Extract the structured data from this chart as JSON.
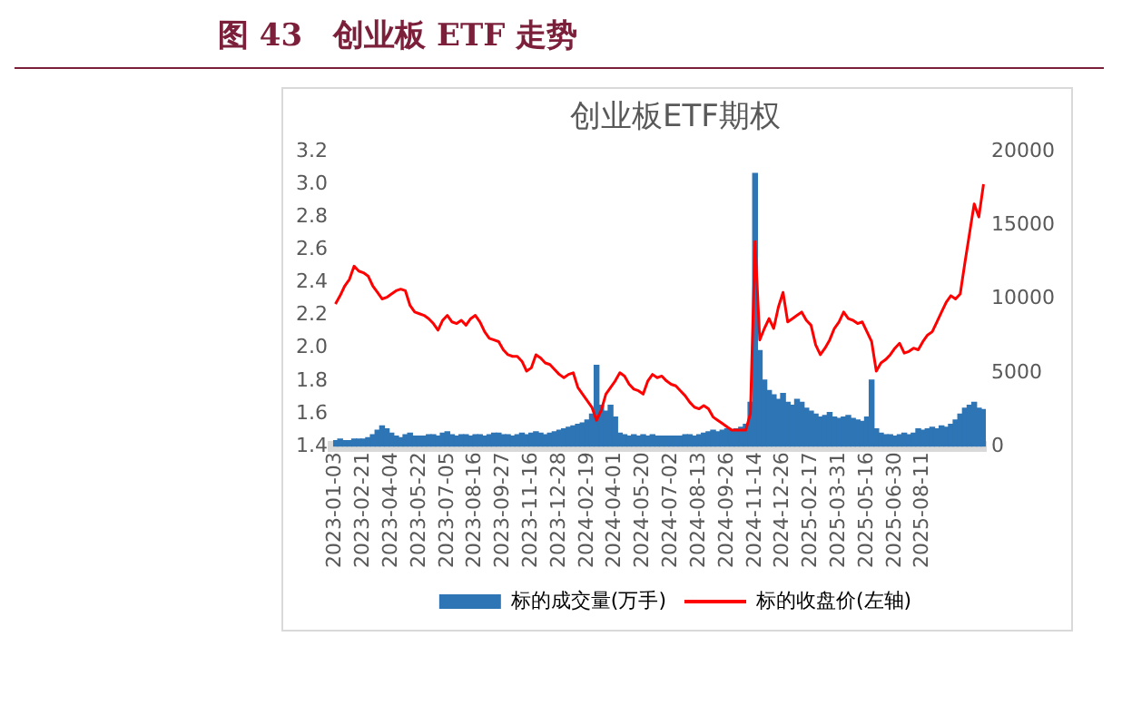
{
  "chart_data": {
    "type": "bar",
    "title": "图 43　创业板 ETF 走势",
    "subtitle": "创业板ETF期权",
    "categories": [
      "2023-01-03",
      null,
      null,
      null,
      null,
      null,
      "2023-02-21",
      null,
      null,
      null,
      null,
      null,
      "2023-04-04",
      null,
      null,
      null,
      null,
      null,
      "2023-05-22",
      null,
      null,
      null,
      null,
      null,
      "2023-07-05",
      null,
      null,
      null,
      null,
      null,
      "2023-08-16",
      null,
      null,
      null,
      null,
      null,
      "2023-09-27",
      null,
      null,
      null,
      null,
      null,
      "2023-11-16",
      null,
      null,
      null,
      null,
      null,
      "2023-12-28",
      null,
      null,
      null,
      null,
      null,
      "2024-02-19",
      null,
      null,
      null,
      null,
      null,
      "2024-04-01",
      null,
      null,
      null,
      null,
      null,
      "2024-05-20",
      null,
      null,
      null,
      null,
      null,
      "2024-07-02",
      null,
      null,
      null,
      null,
      null,
      "2024-08-13",
      null,
      null,
      null,
      null,
      null,
      "2024-09-26",
      null,
      null,
      null,
      null,
      null,
      "2024-11-14",
      null,
      null,
      null,
      null,
      null,
      "2024-12-26",
      null,
      null,
      null,
      null,
      null,
      "2025-02-17",
      null,
      null,
      null,
      null,
      null,
      "2025-03-31",
      null,
      null,
      null,
      null,
      null,
      "2025-05-16",
      null,
      null,
      null,
      null,
      null,
      "2025-06-30",
      null,
      null,
      null,
      null,
      null,
      "2025-08-11",
      null,
      null,
      null,
      null,
      null,
      null,
      null,
      null,
      null,
      null,
      null,
      null,
      null
    ],
    "series": [
      {
        "name": "标的成交量(万手)",
        "axis": "y2",
        "color": "#2e75b6",
        "values": [
          400,
          500,
          400,
          400,
          500,
          500,
          500,
          600,
          800,
          1100,
          1400,
          1200,
          900,
          700,
          600,
          800,
          900,
          700,
          700,
          700,
          800,
          800,
          700,
          900,
          1000,
          800,
          700,
          800,
          800,
          700,
          800,
          800,
          700,
          800,
          900,
          900,
          800,
          800,
          700,
          800,
          900,
          800,
          900,
          1000,
          900,
          800,
          900,
          1000,
          1100,
          1200,
          1300,
          1400,
          1500,
          1600,
          1800,
          2200,
          5500,
          2800,
          2400,
          2800,
          2000,
          900,
          800,
          700,
          800,
          700,
          800,
          700,
          800,
          700,
          700,
          700,
          700,
          700,
          700,
          800,
          800,
          700,
          800,
          900,
          1000,
          1100,
          1000,
          1100,
          1200,
          1100,
          1200,
          1300,
          1500,
          3000,
          18500,
          6500,
          4500,
          3800,
          3500,
          3200,
          3600,
          3000,
          2800,
          3200,
          3000,
          2600,
          2400,
          2200,
          2000,
          2100,
          2300,
          2000,
          1900,
          2000,
          2100,
          1900,
          1800,
          1700,
          2000,
          4500,
          1200,
          900,
          800,
          800,
          700,
          800,
          900,
          800,
          900,
          1200,
          1100,
          1200,
          1300,
          1200,
          1400,
          1300,
          1500,
          1800,
          2200,
          2600,
          2800,
          3000,
          2600,
          2500
        ]
      },
      {
        "name": "标的收盘价(左轴)",
        "type": "line",
        "color": "#ff0000",
        "values": [
          2.27,
          2.32,
          2.38,
          2.42,
          2.5,
          2.47,
          2.46,
          2.44,
          2.38,
          2.34,
          2.3,
          2.31,
          2.33,
          2.35,
          2.36,
          2.35,
          2.26,
          2.22,
          2.21,
          2.2,
          2.18,
          2.15,
          2.11,
          2.17,
          2.2,
          2.16,
          2.15,
          2.17,
          2.14,
          2.18,
          2.2,
          2.16,
          2.1,
          2.06,
          2.05,
          2.04,
          1.99,
          1.96,
          1.95,
          1.95,
          1.92,
          1.86,
          1.88,
          1.96,
          1.94,
          1.91,
          1.9,
          1.87,
          1.84,
          1.82,
          1.84,
          1.85,
          1.76,
          1.72,
          1.68,
          1.64,
          1.56,
          1.62,
          1.72,
          1.76,
          1.8,
          1.85,
          1.83,
          1.78,
          1.75,
          1.74,
          1.72,
          1.8,
          1.84,
          1.82,
          1.83,
          1.8,
          1.78,
          1.77,
          1.74,
          1.71,
          1.67,
          1.64,
          1.63,
          1.65,
          1.63,
          1.58,
          1.56,
          1.54,
          1.52,
          1.5,
          1.5,
          1.5,
          1.5,
          1.6,
          2.65,
          2.05,
          2.12,
          2.18,
          2.12,
          2.25,
          2.34,
          2.16,
          2.18,
          2.2,
          2.22,
          2.17,
          2.14,
          2.02,
          1.96,
          2.0,
          2.05,
          2.12,
          2.16,
          2.22,
          2.18,
          2.17,
          2.15,
          2.16,
          2.1,
          2.04,
          1.86,
          1.91,
          1.93,
          1.96,
          2.0,
          2.03,
          1.97,
          1.98,
          2.0,
          1.99,
          2.04,
          2.08,
          2.1,
          2.16,
          2.22,
          2.28,
          2.32,
          2.3,
          2.33,
          2.52,
          2.7,
          2.88,
          2.8,
          3.0
        ]
      }
    ],
    "ylim": [
      1.4,
      3.2
    ],
    "yticks": [
      1.4,
      1.6,
      1.8,
      {
        "value": 2,
        "label": "2.0"
      },
      2.2,
      2.4,
      2.6,
      2.8,
      {
        "value": 3,
        "label": "3.0"
      },
      3.2
    ],
    "y2lim": [
      0,
      20000
    ],
    "y2ticks": [
      0,
      5000,
      10000,
      15000,
      20000
    ],
    "grid": false,
    "legend": "bottom",
    "marker": "none",
    "line_style": "solid"
  }
}
